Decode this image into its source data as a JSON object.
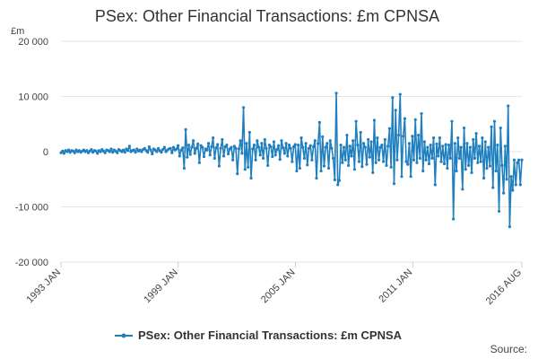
{
  "chart_data": {
    "type": "line",
    "title": "PSex: Other Financial Transactions: £m CPNSA",
    "ylabel": "£m",
    "xlabel": "",
    "ylim": [
      -20000,
      20000
    ],
    "y_ticks": [
      20000,
      10000,
      0,
      -10000,
      -20000
    ],
    "y_tick_labels": [
      "20 000",
      "10 000",
      "0",
      "-10 000",
      "-20 000"
    ],
    "x_tick_labels": [
      "1993 JAN",
      "1999 JAN",
      "2005 JAN",
      "2011 JAN",
      "2016 AUG"
    ],
    "x_range": [
      "1993 JAN",
      "2016 AUG"
    ],
    "grid": true,
    "legend": "bottom",
    "colors": {
      "series": "#1f7fbf"
    },
    "series": [
      {
        "name": "PSex: Other Financial Transactions: £m CPNSA",
        "values": [
          -200,
          100,
          -300,
          200,
          0,
          300,
          -100,
          200,
          100,
          -200,
          300,
          0,
          200,
          -100,
          100,
          300,
          0,
          200,
          -200,
          100,
          400,
          -100,
          200,
          100,
          -300,
          200,
          0,
          400,
          100,
          -200,
          300,
          200,
          0,
          500,
          -100,
          300,
          100,
          -200,
          400,
          200,
          0,
          300,
          -100,
          500,
          200,
          1000,
          0,
          200,
          300,
          -100,
          500,
          100,
          300,
          0,
          400,
          600,
          200,
          -100,
          900,
          300,
          -400,
          500,
          300,
          0,
          600,
          200,
          -100,
          400,
          800,
          0,
          300,
          500,
          600,
          -200,
          800,
          300,
          500,
          1100,
          -800,
          300,
          700,
          -3000,
          4000,
          -1000,
          1200,
          -500,
          800,
          2000,
          -300,
          600,
          1400,
          -2000,
          1100,
          800,
          -900,
          500,
          300,
          1500,
          -600,
          900,
          2500,
          -1200,
          700,
          1300,
          -2600,
          600,
          2200,
          -800,
          900,
          1200,
          -400,
          500,
          800,
          -1500,
          1000,
          600,
          -4000,
          500,
          2000,
          -300,
          8000,
          -3200,
          1500,
          -2800,
          3500,
          -4800,
          500,
          1200,
          -1500,
          2000,
          800,
          -600,
          1500,
          -1200,
          2200,
          600,
          -2500,
          1200,
          900,
          -900,
          1800,
          -600,
          400,
          1100,
          -1400,
          2000,
          700,
          -300,
          1500,
          -800,
          1200,
          600,
          -1800,
          900,
          1300,
          -3500,
          1200,
          -3000,
          2500,
          800,
          -1200,
          1500,
          -2400,
          600,
          1100,
          -1500,
          900,
          2000,
          -4800,
          1500,
          5300,
          -3500,
          2700,
          -2600,
          800,
          1500,
          -3000,
          2000,
          600,
          -1200,
          -5100,
          10600,
          -6000,
          -5200,
          1200,
          -2000,
          800,
          -1500,
          3000,
          -2500,
          1000,
          -800,
          2000,
          -3200,
          5500,
          1200,
          -1800,
          3500,
          -2700,
          1500,
          800,
          -2300,
          2200,
          -1000,
          1800,
          -3800,
          5700,
          -2000,
          2500,
          -1500,
          800,
          1200,
          -1800,
          2200,
          -2500,
          1000,
          4200,
          -2800,
          9800,
          -5800,
          7500,
          -1500,
          3000,
          10400,
          -4500,
          2800,
          6000,
          -1800,
          -2300,
          1500,
          -4500,
          2800,
          -1500,
          5800,
          -2000,
          3000,
          -1200,
          6900,
          -3500,
          1800,
          -1500,
          800,
          -2200,
          1200,
          -1200,
          2500,
          -6000,
          1400,
          -800,
          2500,
          -1800,
          1000,
          -2200,
          1300,
          -3000,
          1200,
          -1200,
          5500,
          -12200,
          1500,
          -3500,
          2500,
          -1200,
          800,
          -6800,
          4300,
          -3200,
          1500,
          -2500,
          800,
          -3800,
          2200,
          -1200,
          3300,
          -2000,
          1000,
          -1800,
          2500,
          -4800,
          1800,
          -3000,
          800,
          -2600,
          4500,
          -6500,
          5500,
          -3500,
          1200,
          -10800,
          4300,
          -2500,
          -7500,
          1000,
          -5000,
          8300,
          -13600,
          -4500,
          -7000,
          -1500,
          -6000,
          -2000,
          -1500,
          -6000,
          -1500
        ]
      }
    ]
  },
  "source_label": "Source:"
}
